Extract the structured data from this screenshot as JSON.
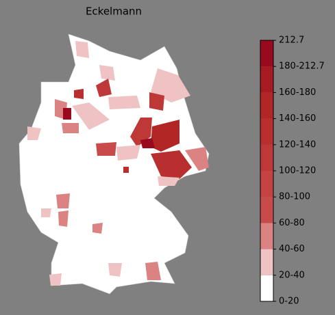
{
  "title": "Eckelmann",
  "legend": {
    "labels": [
      "0-20",
      "20-40",
      "40-60",
      "60-80",
      "80-100",
      "100-120",
      "120-140",
      "140-160",
      "160-180",
      "180-212.7",
      "212.7"
    ],
    "colors": [
      "#ffffff",
      "#efc3c3",
      "#db8282",
      "#c84a4a",
      "#c44242",
      "#bf3838",
      "#b92e2e",
      "#b32626",
      "#a81a22",
      "#990a1e"
    ]
  }
}
